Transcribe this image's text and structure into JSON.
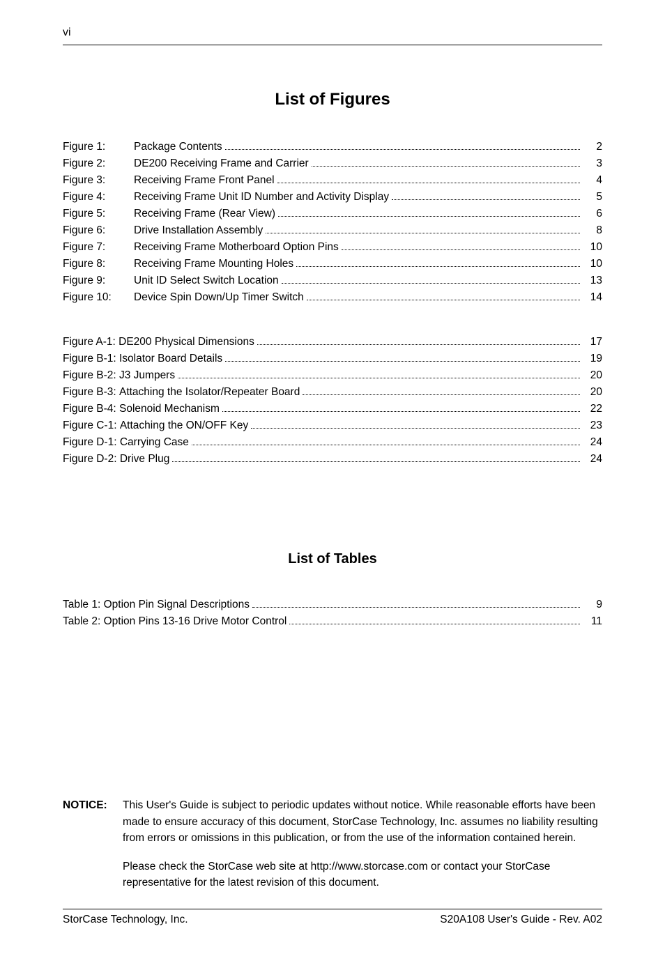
{
  "page_number_top": "vi",
  "list_of_figures_title": "List of Figures",
  "figures": [
    {
      "label": "Figure 1:",
      "title": "Package Contents",
      "page": "2"
    },
    {
      "label": "Figure 2:",
      "title": "DE200 Receiving Frame and Carrier",
      "page": "3"
    },
    {
      "label": "Figure 3:",
      "title": "Receiving Frame Front Panel",
      "page": "4"
    },
    {
      "label": "Figure 4:",
      "title": "Receiving Frame Unit ID Number and Activity Display",
      "page": "5"
    },
    {
      "label": "Figure 5:",
      "title": "Receiving Frame (Rear View)",
      "page": "6"
    },
    {
      "label": "Figure 6:",
      "title": "Drive Installation Assembly",
      "page": "8"
    },
    {
      "label": "Figure 7:",
      "title": "Receiving Frame Motherboard Option Pins",
      "page": "10"
    },
    {
      "label": "Figure 8:",
      "title": "Receiving Frame Mounting Holes",
      "page": "10"
    },
    {
      "label": "Figure 9:",
      "title": "Unit ID Select Switch Location",
      "page": "13"
    },
    {
      "label": "Figure 10:",
      "title": "Device Spin Down/Up Timer Switch",
      "page": "14"
    }
  ],
  "appendix_figures": [
    {
      "label": "Figure A-1:",
      "title": "DE200 Physical Dimensions",
      "page": "17"
    },
    {
      "label": "Figure B-1:",
      "title": "Isolator Board Details",
      "page": "19"
    },
    {
      "label": "Figure B-2:",
      "title": "J3 Jumpers",
      "page": "20"
    },
    {
      "label": "Figure B-3:",
      "title": "Attaching the Isolator/Repeater Board",
      "page": "20"
    },
    {
      "label": "Figure B-4:",
      "title": "Solenoid Mechanism",
      "page": "22"
    },
    {
      "label": "Figure C-1:",
      "title": "Attaching the ON/OFF Key",
      "page": "23"
    },
    {
      "label": "Figure D-1:",
      "title": "Carrying Case",
      "page": "24"
    },
    {
      "label": "Figure D-2:",
      "title": "Drive Plug",
      "page": "24"
    }
  ],
  "list_of_tables_title": "List of Tables",
  "tables": [
    {
      "label": "Table 1:",
      "title": "Option Pin Signal Descriptions",
      "page": "9"
    },
    {
      "label": "Table 2:",
      "title": "Option Pins 13-16 Drive Motor Control",
      "page": "11"
    }
  ],
  "notice": {
    "label": "NOTICE:",
    "para1": "This User's Guide is subject to periodic updates without notice.  While reasonable efforts have been made to ensure accuracy of this document, StorCase Technology, Inc. assumes no liability resulting from errors or omissions in this publication, or from the use of the information contained herein.",
    "para2": "Please check the StorCase web site at http://www.storcase.com or contact your StorCase representative for the latest revision of this document."
  },
  "footer": {
    "left": "StorCase Technology, Inc.",
    "right": "S20A108 User's Guide - Rev. A02"
  }
}
